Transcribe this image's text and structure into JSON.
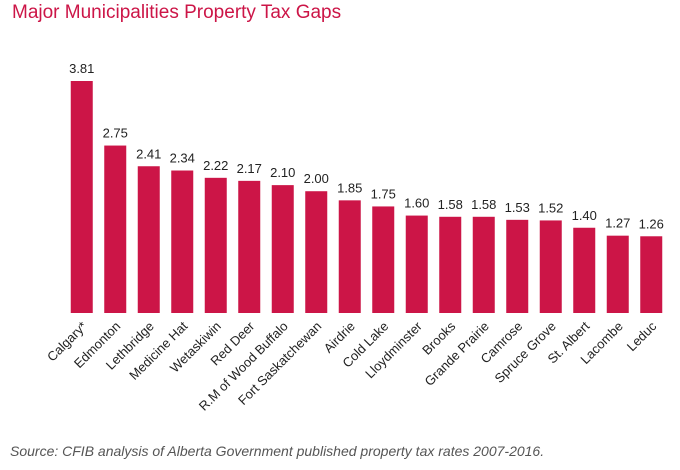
{
  "colors": {
    "bar": "#cc1547",
    "title": "#cc1547",
    "label": "#222222",
    "source": "#555555"
  },
  "chart_data": {
    "type": "bar",
    "title": "Major Municipalities Property Tax Gaps",
    "xlabel": "",
    "ylabel": "",
    "ylim": [
      0,
      3.81
    ],
    "grid": false,
    "legend": "none",
    "categories": [
      "Calgary*",
      "Edmonton",
      "Lethbridge",
      "Medicine Hat",
      "Wetaskiwin",
      "Red Deer",
      "R.M of Wood Buffalo",
      "Fort Saskatchewan",
      "Airdrie",
      "Cold Lake",
      "Lloydminster",
      "Brooks",
      "Grande Prairie",
      "Camrose",
      "Spruce Grove",
      "St. Albert",
      "Lacombe",
      "Leduc"
    ],
    "values": [
      3.81,
      2.75,
      2.41,
      2.34,
      2.22,
      2.17,
      2.1,
      2.0,
      1.85,
      1.75,
      1.6,
      1.58,
      1.58,
      1.53,
      1.52,
      1.4,
      1.27,
      1.26
    ],
    "data_labels": [
      "3.81",
      "2.75",
      "2.41",
      "2.34",
      "2.22",
      "2.17",
      "2.10",
      "2.00",
      "1.85",
      "1.75",
      "1.60",
      "1.58",
      "1.58",
      "1.53",
      "1.52",
      "1.40",
      "1.27",
      "1.26"
    ],
    "source": "Source: CFIB analysis of Alberta Government published property tax rates 2007-2016."
  }
}
